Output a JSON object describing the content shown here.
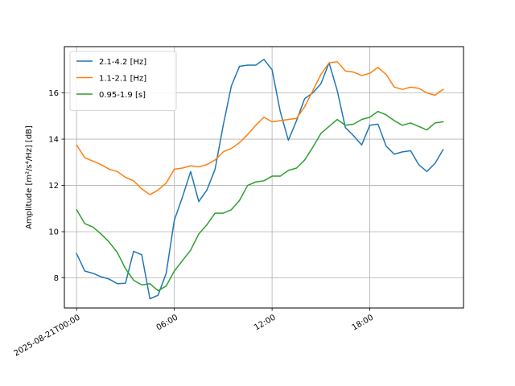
{
  "chart_data": {
    "type": "line",
    "title": "",
    "xlabel": "",
    "ylabel": "Amplitude [m²/s⁴/Hz] [dB]",
    "x_axis": {
      "type": "time",
      "range_hours": [
        -0.75,
        23.75
      ],
      "ticks": [
        {
          "hour": 0,
          "label": "2025-08-21T00:00"
        },
        {
          "hour": 6,
          "label": "06:00"
        },
        {
          "hour": 12,
          "label": "12:00"
        },
        {
          "hour": 18,
          "label": "18:00"
        }
      ]
    },
    "ylim": [
      6.7,
      18.0
    ],
    "yticks": [
      8,
      10,
      12,
      14,
      16
    ],
    "grid": true,
    "legend_position": "top-left",
    "x_hours": [
      0,
      0.5,
      1,
      1.5,
      2,
      2.5,
      3,
      3.5,
      4,
      4.5,
      5,
      5.5,
      6,
      6.5,
      7,
      7.5,
      8,
      8.5,
      9,
      9.5,
      10,
      10.5,
      11,
      11.5,
      12,
      12.5,
      13,
      13.5,
      14,
      14.5,
      15,
      15.5,
      16,
      16.5,
      17,
      17.5,
      18,
      18.5,
      19,
      19.5,
      20,
      20.5,
      21,
      21.5,
      22,
      22.5
    ],
    "series": [
      {
        "name": "2.1-4.2 [Hz]",
        "color": "#1f77b4",
        "values": [
          9.05,
          8.3,
          8.2,
          8.05,
          7.95,
          7.75,
          7.77,
          9.15,
          9.0,
          7.1,
          7.25,
          8.2,
          10.5,
          11.5,
          12.6,
          11.3,
          11.8,
          12.7,
          14.6,
          16.3,
          17.15,
          17.2,
          17.2,
          17.45,
          17.0,
          15.2,
          13.95,
          14.8,
          15.75,
          16.0,
          16.4,
          17.3,
          16.1,
          14.5,
          14.15,
          13.75,
          14.6,
          14.65,
          13.7,
          13.35,
          13.45,
          13.5,
          12.9,
          12.6,
          12.95,
          13.55
        ]
      },
      {
        "name": "1.1-2.1 [Hz]",
        "color": "#ff7f0e",
        "values": [
          13.75,
          13.2,
          13.05,
          12.9,
          12.7,
          12.6,
          12.35,
          12.2,
          11.85,
          11.6,
          11.8,
          12.1,
          12.7,
          12.75,
          12.85,
          12.8,
          12.9,
          13.1,
          13.45,
          13.6,
          13.85,
          14.2,
          14.6,
          14.95,
          14.75,
          14.8,
          14.85,
          14.9,
          15.4,
          16.1,
          16.8,
          17.3,
          17.35,
          16.95,
          16.9,
          16.75,
          16.85,
          17.1,
          16.8,
          16.25,
          16.15,
          16.25,
          16.2,
          16.0,
          15.9,
          16.15
        ]
      },
      {
        "name": "0.95-1.9 [s]",
        "color": "#2ca02c",
        "values": [
          10.95,
          10.35,
          10.2,
          9.9,
          9.55,
          9.1,
          8.4,
          7.9,
          7.7,
          7.75,
          7.45,
          7.65,
          8.3,
          8.75,
          9.2,
          9.9,
          10.3,
          10.8,
          10.8,
          10.95,
          11.35,
          12.0,
          12.15,
          12.2,
          12.4,
          12.4,
          12.65,
          12.75,
          13.1,
          13.65,
          14.25,
          14.55,
          14.85,
          14.6,
          14.65,
          14.85,
          14.95,
          15.2,
          15.05,
          14.8,
          14.6,
          14.7,
          14.55,
          14.4,
          14.7,
          14.75
        ]
      }
    ]
  }
}
